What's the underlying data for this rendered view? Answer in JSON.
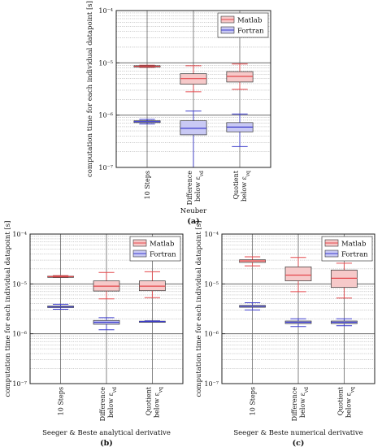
{
  "chart_data": [
    {
      "type": "box",
      "panel_label": "(a)",
      "xlabel": "Neuber",
      "ylabel": "computation time for each individual datapoint [s]",
      "yscale": "log",
      "ylim": [
        1e-07,
        0.0001
      ],
      "y_ticks": [
        "10⁻⁷",
        "10⁻⁶",
        "10⁻⁵",
        "10⁻⁴"
      ],
      "grid": true,
      "legend_position": "top-right",
      "legend": [
        "Matlab",
        "Fortran"
      ],
      "categories": [
        {
          "label": "10 Steps"
        },
        {
          "line1": "Difference",
          "line2": "below ε",
          "sub": "vd"
        },
        {
          "line1": "Quotient",
          "line2": "below ε",
          "sub": "vq"
        }
      ],
      "series": [
        {
          "name": "Matlab",
          "color": "#e4484c",
          "fill": "#f6c9c9",
          "boxes": [
            {
              "min": 8.2e-06,
              "q1": 8.4e-06,
              "median": 8.6e-06,
              "q3": 8.8e-06,
              "max": 9e-06
            },
            {
              "min": 2.8e-06,
              "q1": 3.9e-06,
              "median": 5e-06,
              "q3": 6.2e-06,
              "max": 8.8e-06
            },
            {
              "min": 3.1e-06,
              "q1": 4.3e-06,
              "median": 5.5e-06,
              "q3": 6.8e-06,
              "max": 9.5e-06
            }
          ]
        },
        {
          "name": "Fortran",
          "color": "#3c3ccc",
          "fill": "#c9c9f4",
          "boxes": [
            {
              "min": 6.8e-07,
              "q1": 7.2e-07,
              "median": 7.5e-07,
              "q3": 7.8e-07,
              "max": 8.3e-07
            },
            {
              "min": 1e-07,
              "q1": 4.2e-07,
              "median": 5.6e-07,
              "q3": 7.8e-07,
              "max": 1.2e-06
            },
            {
              "min": 2.5e-07,
              "q1": 4.8e-07,
              "median": 5.9e-07,
              "q3": 7.2e-07,
              "max": 1.05e-06
            }
          ]
        }
      ]
    },
    {
      "type": "box",
      "panel_label": "(b)",
      "xlabel": "Seeger & Beste analytical derivative",
      "ylabel": "computation time for each individual datapoint [s]",
      "yscale": "log",
      "ylim": [
        1e-07,
        0.0001
      ],
      "y_ticks": [
        "10⁻⁷",
        "10⁻⁶",
        "10⁻⁵",
        "10⁻⁴"
      ],
      "grid": true,
      "legend_position": "top-right",
      "legend": [
        "Matlab",
        "Fortran"
      ],
      "categories": [
        {
          "label": "10 Steps"
        },
        {
          "line1": "Difference",
          "line2": "below ε",
          "sub": "vd"
        },
        {
          "line1": "Quotient",
          "line2": "below ε",
          "sub": "vq"
        }
      ],
      "series": [
        {
          "name": "Matlab",
          "color": "#e4484c",
          "fill": "#f6c9c9",
          "boxes": [
            {
              "min": 1.35e-05,
              "q1": 1.38e-05,
              "median": 1.4e-05,
              "q3": 1.43e-05,
              "max": 1.47e-05
            },
            {
              "min": 5e-06,
              "q1": 7.2e-06,
              "median": 9e-06,
              "q3": 1.15e-05,
              "max": 1.7e-05
            },
            {
              "min": 5.3e-06,
              "q1": 7.3e-06,
              "median": 9e-06,
              "q3": 1.15e-05,
              "max": 1.75e-05
            }
          ]
        },
        {
          "name": "Fortran",
          "color": "#3c3ccc",
          "fill": "#c9c9f4",
          "boxes": [
            {
              "min": 3.1e-06,
              "q1": 3.35e-06,
              "median": 3.45e-06,
              "q3": 3.6e-06,
              "max": 3.9e-06
            },
            {
              "min": 1.2e-06,
              "q1": 1.55e-06,
              "median": 1.7e-06,
              "q3": 1.85e-06,
              "max": 2.1e-06
            },
            {
              "min": 1.7e-06,
              "q1": 1.74e-06,
              "median": 1.76e-06,
              "q3": 1.79e-06,
              "max": 1.82e-06
            }
          ]
        }
      ]
    },
    {
      "type": "box",
      "panel_label": "(c)",
      "xlabel": "Seeger & Beste numerical derivative",
      "ylabel": "computation time for each individual datapoint [s]",
      "yscale": "log",
      "ylim": [
        1e-07,
        0.0001
      ],
      "y_ticks": [
        "10⁻⁷",
        "10⁻⁶",
        "10⁻⁵",
        "10⁻⁴"
      ],
      "grid": true,
      "legend_position": "top-right",
      "legend": [
        "Matlab",
        "Fortran"
      ],
      "categories": [
        {
          "label": "10 Steps"
        },
        {
          "line1": "Difference",
          "line2": "below ε",
          "sub": "vd"
        },
        {
          "line1": "Quotient",
          "line2": "below ε",
          "sub": "vq"
        }
      ],
      "series": [
        {
          "name": "Matlab",
          "color": "#e4484c",
          "fill": "#f6c9c9",
          "boxes": [
            {
              "min": 2.3e-05,
              "q1": 2.7e-05,
              "median": 2.9e-05,
              "q3": 3.05e-05,
              "max": 3.5e-05
            },
            {
              "min": 7e-06,
              "q1": 1.15e-05,
              "median": 1.5e-05,
              "q3": 2.2e-05,
              "max": 3.4e-05
            },
            {
              "min": 5.2e-06,
              "q1": 8.5e-06,
              "median": 1.3e-05,
              "q3": 1.9e-05,
              "max": 2.6e-05
            }
          ]
        },
        {
          "name": "Fortran",
          "color": "#3c3ccc",
          "fill": "#c9c9f4",
          "boxes": [
            {
              "min": 3e-06,
              "q1": 3.4e-06,
              "median": 3.55e-06,
              "q3": 3.7e-06,
              "max": 4.2e-06
            },
            {
              "min": 1.4e-06,
              "q1": 1.6e-06,
              "median": 1.7e-06,
              "q3": 1.8e-06,
              "max": 2e-06
            },
            {
              "min": 1.45e-06,
              "q1": 1.6e-06,
              "median": 1.7e-06,
              "q3": 1.8e-06,
              "max": 2e-06
            }
          ]
        }
      ]
    }
  ]
}
